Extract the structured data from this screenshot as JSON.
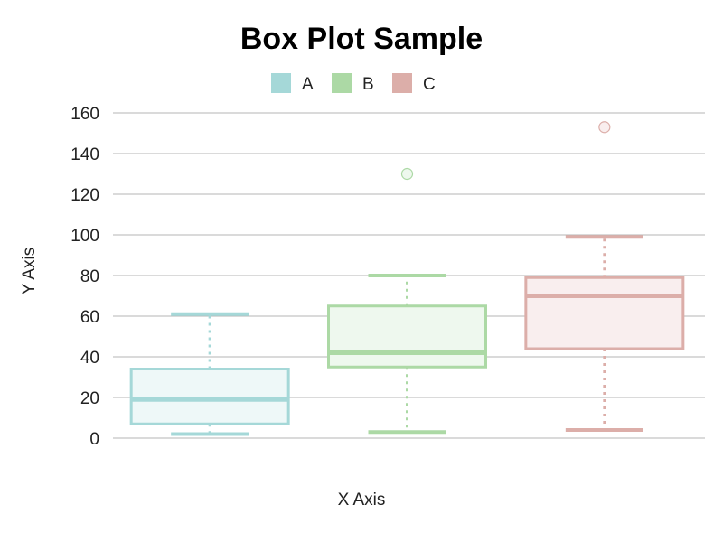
{
  "chart_data": {
    "type": "box",
    "title": "Box Plot Sample",
    "xlabel": "X Axis",
    "ylabel": "Y Axis",
    "ylim": [
      0,
      160
    ],
    "yticks": [
      0,
      20,
      40,
      60,
      80,
      100,
      120,
      140,
      160
    ],
    "grid": true,
    "legend_position": "top-center",
    "series": [
      {
        "name": "A",
        "color": "#a5d8d8",
        "fill": "#eef8f8",
        "min": 2,
        "q1": 7,
        "median": 19,
        "q3": 34,
        "max": 61,
        "outliers": []
      },
      {
        "name": "B",
        "color": "#acd9a5",
        "fill": "#eef8ee",
        "min": 3,
        "q1": 35,
        "median": 42,
        "q3": 65,
        "max": 80,
        "outliers": [
          130
        ]
      },
      {
        "name": "C",
        "color": "#dcaea9",
        "fill": "#f9eeee",
        "min": 4,
        "q1": 44,
        "median": 70,
        "q3": 79,
        "max": 99,
        "outliers": [
          153
        ]
      }
    ]
  }
}
